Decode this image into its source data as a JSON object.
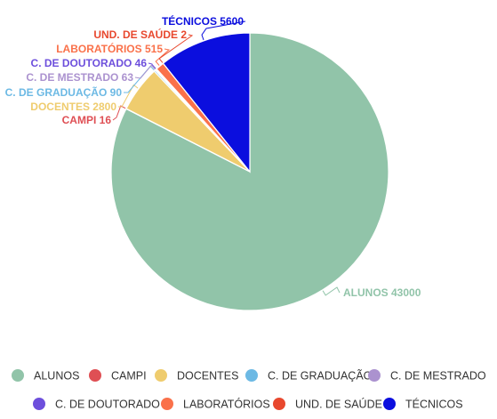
{
  "chart_data": {
    "type": "pie",
    "slices": [
      {
        "name": "ALUNOS",
        "value": 43000,
        "color": "#91c4a9",
        "label": "ALUNOS 43000"
      },
      {
        "name": "CAMPI",
        "value": 16,
        "color": "#df4f54",
        "label": "CAMPI 16"
      },
      {
        "name": "DOCENTES",
        "value": 2800,
        "color": "#efcc6e",
        "label": "DOCENTES 2800"
      },
      {
        "name": "C. DE GRADUAÇÃO",
        "value": 90,
        "color": "#6cb9e4",
        "label": "C. DE GRADUAÇÃO 90"
      },
      {
        "name": "C. DE MESTRADO",
        "value": 63,
        "color": "#ab92cf",
        "label": "C. DE MESTRADO 63"
      },
      {
        "name": "C. DE DOUTORADO",
        "value": 46,
        "color": "#6d4fdc",
        "label": "C. DE DOUTORADO 46"
      },
      {
        "name": "LABORATÓRIOS",
        "value": 515,
        "color": "#fa714a",
        "label": "LABORATÓRIOS 515"
      },
      {
        "name": "UND. DE SAÚDE",
        "value": 2,
        "color": "#e8482e",
        "label": "UND. DE SAÚDE 2"
      },
      {
        "name": "TÉCNICOS",
        "value": 5600,
        "color": "#0b0ede",
        "label": "TÉCNICOS 5600"
      }
    ],
    "legend": {
      "position": "bottom",
      "items": [
        "ALUNOS",
        "CAMPI",
        "DOCENTES",
        "C. DE GRADUAÇÃO",
        "C. DE MESTRADO",
        "C. DE DOUTORADO",
        "LABORATÓRIOS",
        "UND. DE SAÚDE",
        "TÉCNICOS"
      ]
    },
    "start": "top",
    "direction": "clockwise"
  }
}
